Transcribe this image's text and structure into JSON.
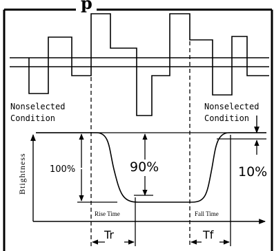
{
  "header_fragment": "p",
  "left_condition": {
    "line1": "Nonselected",
    "line2": "Condition"
  },
  "right_condition": {
    "line1": "Nonselected",
    "line2": "Condition"
  },
  "y_axis_label": "Btightness",
  "full_label": "100%",
  "ninety_label": "90%",
  "ten_label": "10%",
  "rise_time_label": "Rise Time",
  "fall_time_label": "Fall Time",
  "tr_label": "Tr",
  "tf_label": "Tf"
}
